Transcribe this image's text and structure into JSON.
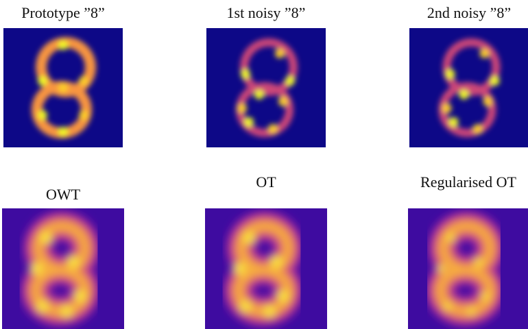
{
  "panels": [
    {
      "title": "Prototype ”8”"
    },
    {
      "title": "1st noisy ”8”"
    },
    {
      "title": "2nd noisy ”8”"
    },
    {
      "title": "OWT"
    },
    {
      "title": "OT"
    },
    {
      "title": "Regularised OT"
    }
  ]
}
